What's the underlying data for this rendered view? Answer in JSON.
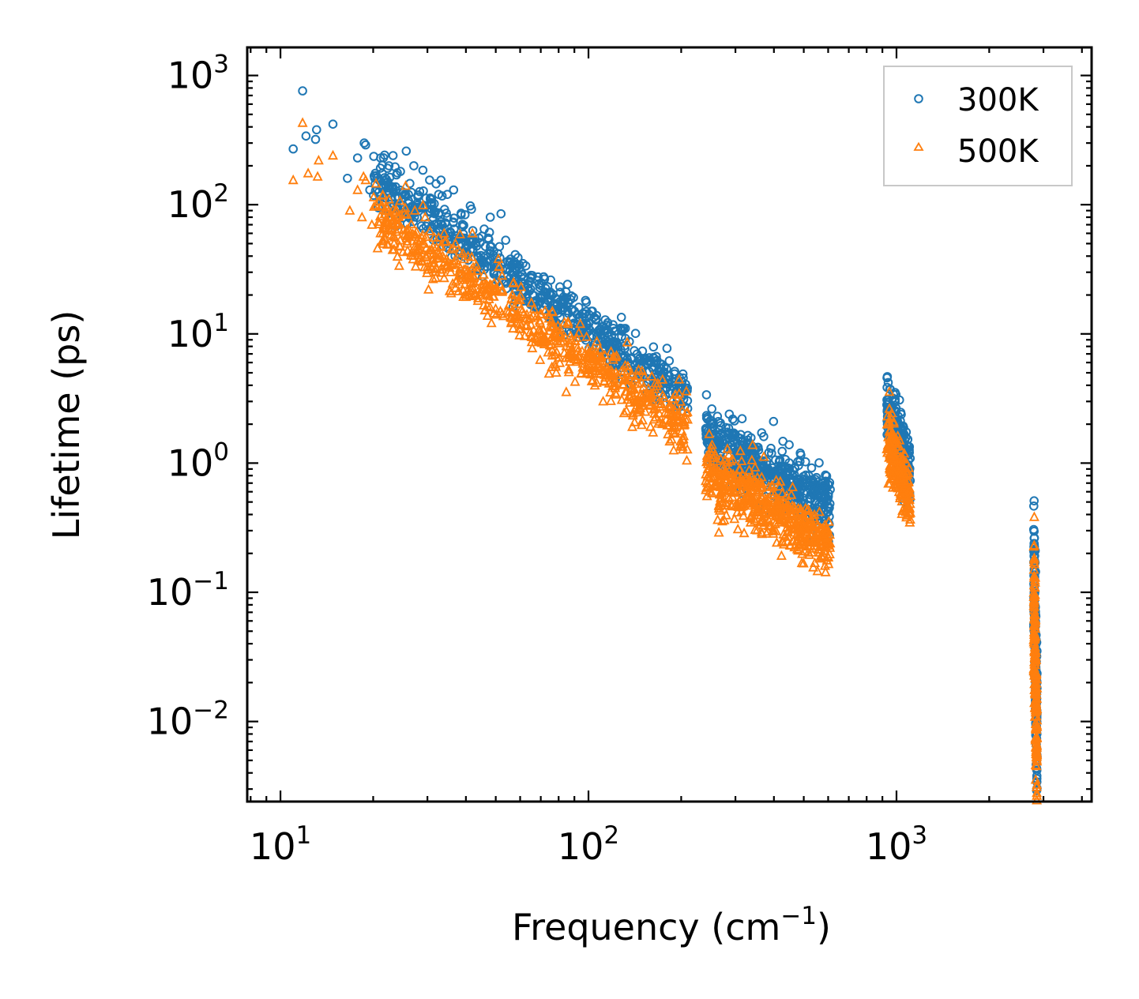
{
  "chart_data": {
    "type": "scatter",
    "title": "",
    "xlabel": "Frequency (cm",
    "xlabel_superscript": "−1",
    "xlabel_suffix": ")",
    "ylabel": "Lifetime (ps)",
    "xscale": "log",
    "yscale": "log",
    "xlim": [
      7.8,
      4300
    ],
    "ylim": [
      0.0024,
      1650
    ],
    "grid": false,
    "legend_position": "top-right",
    "x_ticks": [
      {
        "value": 10,
        "base": "10",
        "exp": "1"
      },
      {
        "value": 100,
        "base": "10",
        "exp": "2"
      },
      {
        "value": 1000,
        "base": "10",
        "exp": "3"
      }
    ],
    "y_ticks": [
      {
        "value": 0.01,
        "base": "10",
        "exp": "−2"
      },
      {
        "value": 0.1,
        "base": "10",
        "exp": "−1"
      },
      {
        "value": 1,
        "base": "10",
        "exp": "0"
      },
      {
        "value": 10,
        "base": "10",
        "exp": "1"
      },
      {
        "value": 100,
        "base": "10",
        "exp": "2"
      },
      {
        "value": 1000,
        "base": "10",
        "exp": "3"
      }
    ],
    "series": [
      {
        "name": "300K",
        "marker": "circle",
        "color": "#1f77b4",
        "trend_segments": [
          {
            "x_range": [
              20,
              210
            ],
            "y_start": 160,
            "y_end": 3.2,
            "jitter_dex": 0.1,
            "count": 700
          },
          {
            "x_range": [
              240,
              610
            ],
            "y_start": 1.6,
            "y_end": 0.45,
            "jitter_dex": 0.12,
            "count": 520
          },
          {
            "x_range": [
              930,
              1110
            ],
            "y_start": 2.6,
            "y_end": 0.9,
            "jitter_dex": 0.12,
            "count": 220
          },
          {
            "x_range": [
              2790,
              2860
            ],
            "y_start": 0.16,
            "y_end": 0.008,
            "jitter_dex": 0.28,
            "count": 200
          }
        ],
        "points": [
          {
            "x": 11.0,
            "y": 270
          },
          {
            "x": 11.8,
            "y": 760
          },
          {
            "x": 12.1,
            "y": 340
          },
          {
            "x": 13.0,
            "y": 320
          },
          {
            "x": 13.1,
            "y": 380
          },
          {
            "x": 14.8,
            "y": 420
          },
          {
            "x": 16.5,
            "y": 160
          },
          {
            "x": 17.8,
            "y": 230
          },
          {
            "x": 18.7,
            "y": 300
          },
          {
            "x": 18.9,
            "y": 290
          },
          {
            "x": 19.5,
            "y": 130
          },
          {
            "x": 21.5,
            "y": 105
          },
          {
            "x": 22.5,
            "y": 200
          },
          {
            "x": 23.2,
            "y": 240
          },
          {
            "x": 23.8,
            "y": 170
          },
          {
            "x": 25.6,
            "y": 260
          },
          {
            "x": 25.3,
            "y": 120
          },
          {
            "x": 27.1,
            "y": 200
          },
          {
            "x": 29.0,
            "y": 185
          },
          {
            "x": 30.5,
            "y": 155
          },
          {
            "x": 32.0,
            "y": 145
          },
          {
            "x": 33.2,
            "y": 155
          },
          {
            "x": 34.8,
            "y": 120
          },
          {
            "x": 36.5,
            "y": 130
          },
          {
            "x": 48.0,
            "y": 80
          },
          {
            "x": 52.0,
            "y": 85
          },
          {
            "x": 85.0,
            "y": 19
          },
          {
            "x": 90.0,
            "y": 15
          },
          {
            "x": 103.0,
            "y": 15
          },
          {
            "x": 130.0,
            "y": 11
          },
          {
            "x": 178.0,
            "y": 4.5
          },
          {
            "x": 940.0,
            "y": 4.2
          },
          {
            "x": 2820.0,
            "y": 0.21
          }
        ]
      },
      {
        "name": "500K",
        "marker": "triangle",
        "color": "#ff7f0e",
        "trend_segments": [
          {
            "x_range": [
              20,
              210
            ],
            "y_start": 85,
            "y_end": 1.8,
            "jitter_dex": 0.11,
            "count": 700
          },
          {
            "x_range": [
              240,
              610
            ],
            "y_start": 0.85,
            "y_end": 0.24,
            "jitter_dex": 0.12,
            "count": 520
          },
          {
            "x_range": [
              930,
              1110
            ],
            "y_start": 1.6,
            "y_end": 0.5,
            "jitter_dex": 0.12,
            "count": 220
          },
          {
            "x_range": [
              2790,
              2860
            ],
            "y_start": 0.1,
            "y_end": 0.005,
            "jitter_dex": 0.28,
            "count": 200
          }
        ],
        "points": [
          {
            "x": 11.0,
            "y": 155
          },
          {
            "x": 11.8,
            "y": 430
          },
          {
            "x": 12.3,
            "y": 175
          },
          {
            "x": 13.2,
            "y": 165
          },
          {
            "x": 13.3,
            "y": 220
          },
          {
            "x": 14.8,
            "y": 240
          },
          {
            "x": 16.8,
            "y": 90
          },
          {
            "x": 17.8,
            "y": 130
          },
          {
            "x": 18.6,
            "y": 165
          },
          {
            "x": 18.9,
            "y": 155
          },
          {
            "x": 18.4,
            "y": 80
          },
          {
            "x": 19.8,
            "y": 70
          },
          {
            "x": 21.5,
            "y": 60
          },
          {
            "x": 22.5,
            "y": 110
          },
          {
            "x": 23.1,
            "y": 75
          },
          {
            "x": 25.5,
            "y": 140
          },
          {
            "x": 26.0,
            "y": 65
          },
          {
            "x": 27.3,
            "y": 90
          },
          {
            "x": 29.5,
            "y": 80
          },
          {
            "x": 31.0,
            "y": 45
          },
          {
            "x": 34.0,
            "y": 60
          },
          {
            "x": 37.0,
            "y": 50
          },
          {
            "x": 42.0,
            "y": 60
          },
          {
            "x": 51.0,
            "y": 38
          },
          {
            "x": 265.0,
            "y": 0.29
          },
          {
            "x": 935.0,
            "y": 2.3
          },
          {
            "x": 2820.0,
            "y": 0.13
          },
          {
            "x": 2830.0,
            "y": 0.0046
          }
        ]
      }
    ]
  }
}
